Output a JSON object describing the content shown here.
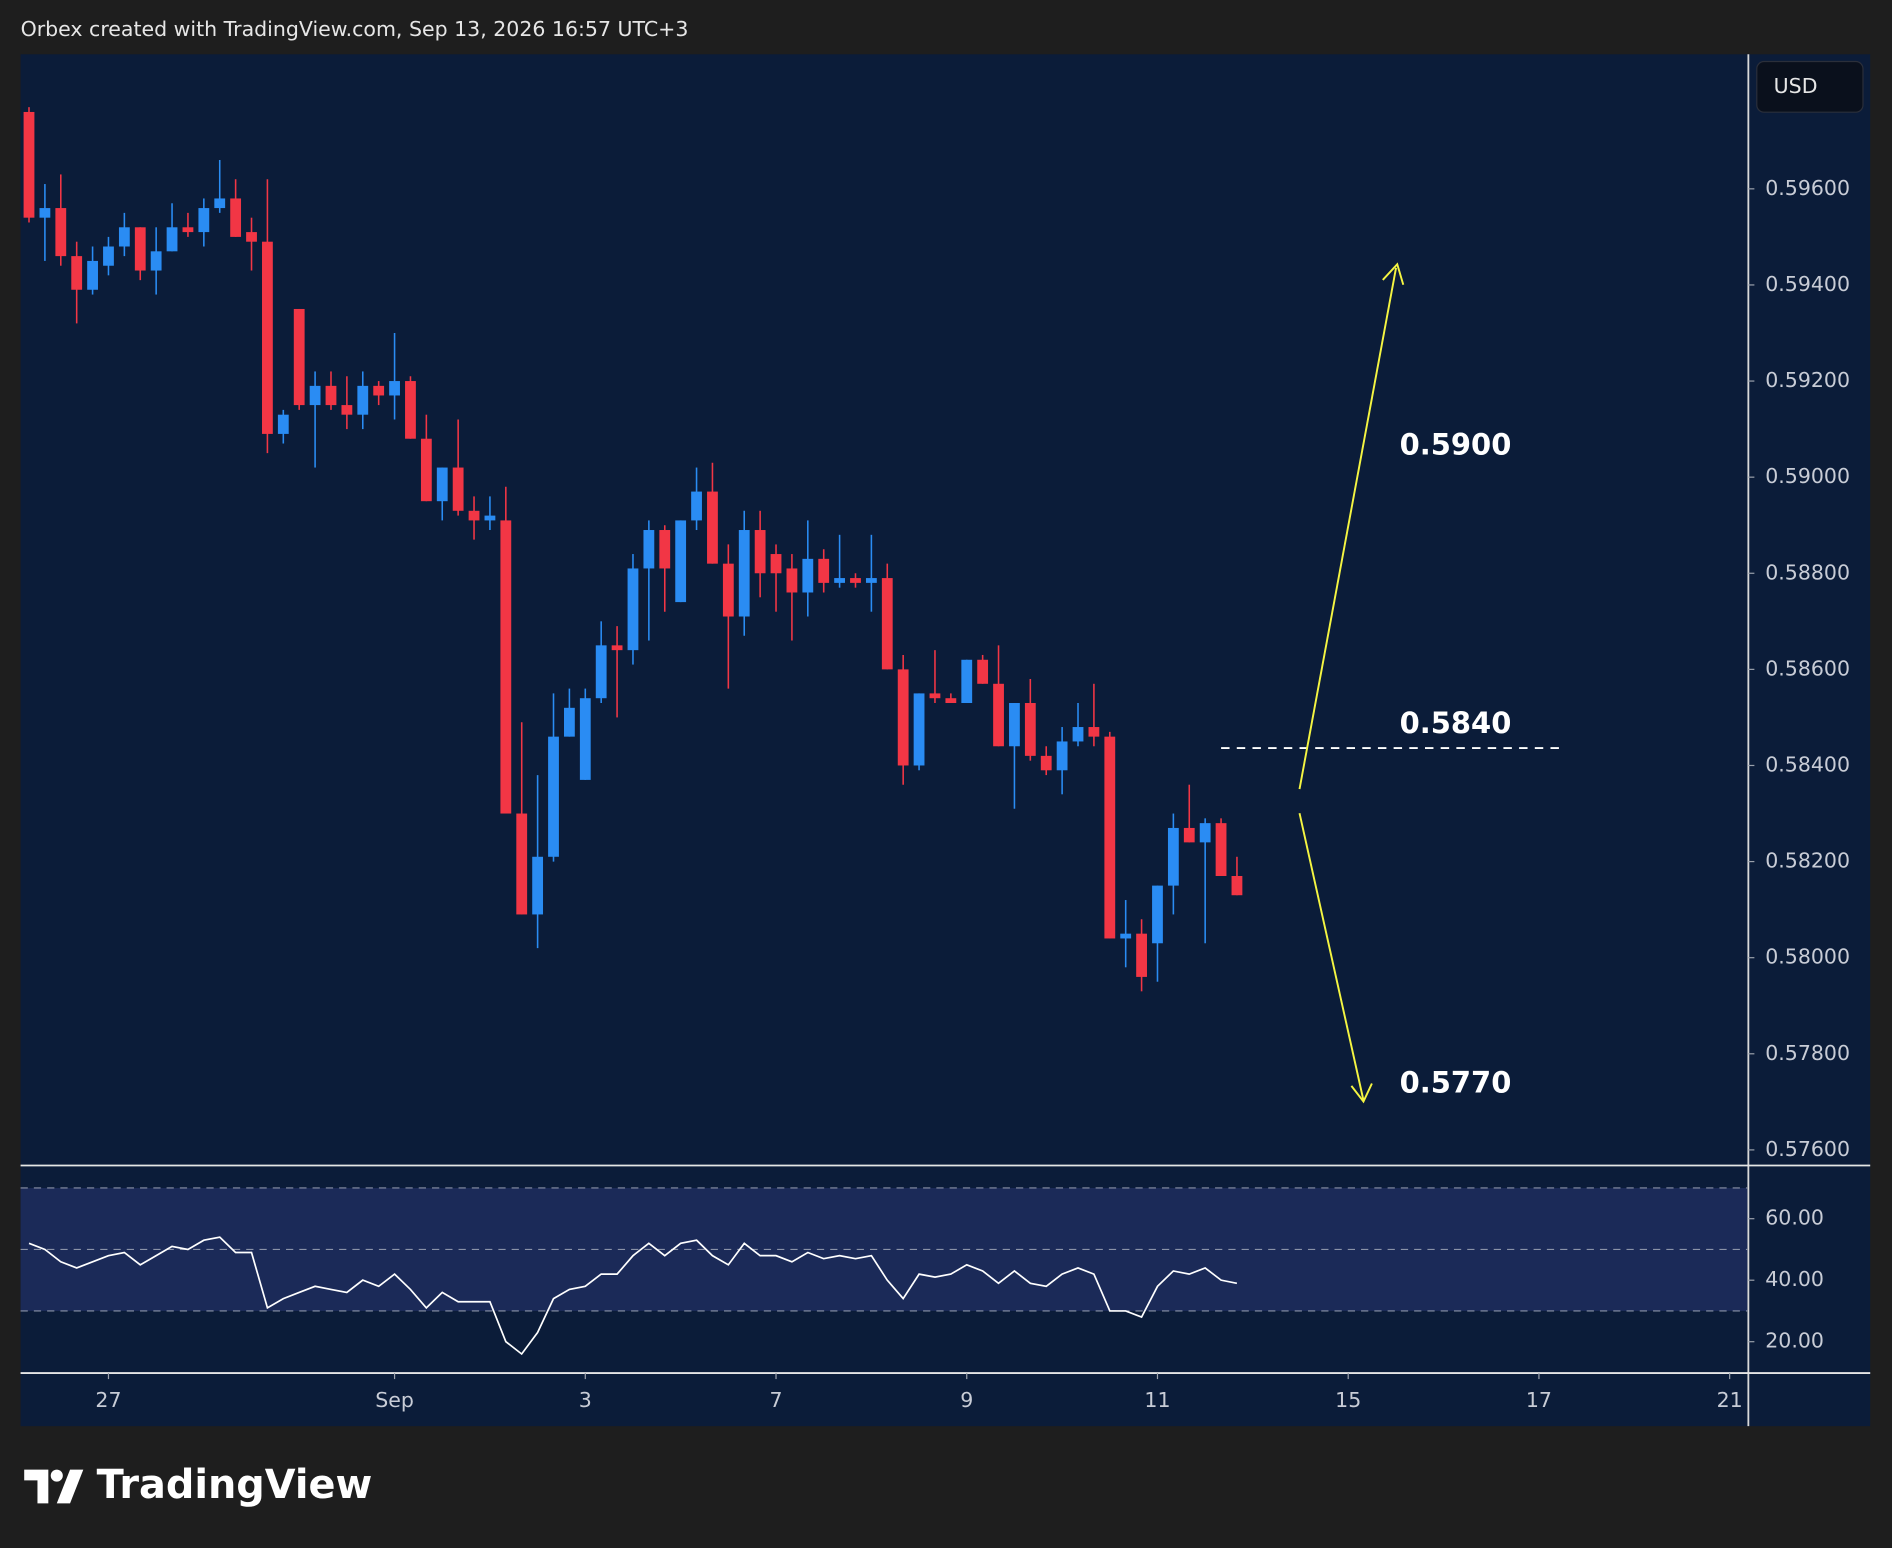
{
  "header": "Orbex created with TradingView.com, Sep 13, 2026 16:57 UTC+3",
  "watermark": "TradingView",
  "chart_data": {
    "type": "candlestick",
    "currency": "USD",
    "up_color": "#2a8cf3",
    "down_color": "#f23645",
    "open": [
      0.5976,
      0.5954,
      0.5956,
      0.5946,
      0.5939,
      0.5944,
      0.5948,
      0.5952,
      0.5943,
      0.5947,
      0.5952,
      0.5951,
      0.5956,
      0.5958,
      0.5951,
      0.5949,
      0.5909,
      0.5935,
      0.5915,
      0.5919,
      0.5915,
      0.5913,
      0.5919,
      0.5917,
      0.592,
      0.5908,
      0.5895,
      0.5902,
      0.5893,
      0.5891,
      0.5891,
      0.583,
      0.5809,
      0.5821,
      0.5846,
      0.5837,
      0.5854,
      0.5865,
      0.5864,
      0.5881,
      0.5889,
      0.5874,
      0.5891,
      0.5897,
      0.5882,
      0.5871,
      0.5889,
      0.5884,
      0.5881,
      0.5876,
      0.5883,
      0.5878,
      0.5879,
      0.5878,
      0.5879,
      0.586,
      0.584,
      0.5855,
      0.5854,
      0.5853,
      0.5862,
      0.5857,
      0.5844,
      0.5853,
      0.5842,
      0.5839,
      0.5845,
      0.5848,
      0.5846,
      0.5804,
      0.5805,
      0.5803,
      0.5815,
      0.5827,
      0.5824,
      0.5828,
      0.5817
    ],
    "high": [
      0.5977,
      0.5961,
      0.5963,
      0.5949,
      0.5948,
      0.595,
      0.5955,
      0.5952,
      0.5952,
      0.5957,
      0.5955,
      0.5958,
      0.5966,
      0.5962,
      0.5954,
      0.5962,
      0.5914,
      0.5935,
      0.5922,
      0.5922,
      0.5921,
      0.5922,
      0.592,
      0.593,
      0.5921,
      0.5913,
      0.5902,
      0.5912,
      0.5896,
      0.5896,
      0.5898,
      0.5849,
      0.5838,
      0.5855,
      0.5856,
      0.5856,
      0.587,
      0.5869,
      0.5884,
      0.5891,
      0.589,
      0.5891,
      0.5902,
      0.5903,
      0.5886,
      0.5893,
      0.5893,
      0.5886,
      0.5884,
      0.5891,
      0.5885,
      0.5888,
      0.588,
      0.5888,
      0.5882,
      0.5863,
      0.5855,
      0.5864,
      0.5855,
      0.5862,
      0.5863,
      0.5865,
      0.5853,
      0.5858,
      0.5844,
      0.5848,
      0.5853,
      0.5857,
      0.5847,
      0.5812,
      0.5808,
      0.5815,
      0.583,
      0.5836,
      0.5829,
      0.5829,
      0.5821
    ],
    "low": [
      0.5953,
      0.5945,
      0.5944,
      0.5932,
      0.5938,
      0.5942,
      0.5946,
      0.5941,
      0.5938,
      0.5947,
      0.595,
      0.5948,
      0.5955,
      0.595,
      0.5943,
      0.5905,
      0.5907,
      0.5914,
      0.5902,
      0.5914,
      0.591,
      0.591,
      0.5915,
      0.5912,
      0.5908,
      0.5895,
      0.5891,
      0.5892,
      0.5887,
      0.5889,
      0.583,
      0.5809,
      0.5802,
      0.582,
      0.5846,
      0.5837,
      0.5853,
      0.585,
      0.5861,
      0.5866,
      0.5872,
      0.5874,
      0.5889,
      0.5882,
      0.5856,
      0.5867,
      0.5875,
      0.5872,
      0.5866,
      0.5871,
      0.5876,
      0.5877,
      0.5877,
      0.5872,
      0.586,
      0.5836,
      0.5839,
      0.5853,
      0.5853,
      0.5853,
      0.5857,
      0.5844,
      0.5831,
      0.5841,
      0.5838,
      0.5834,
      0.5844,
      0.5844,
      0.5804,
      0.5798,
      0.5793,
      0.5795,
      0.5809,
      0.5824,
      0.5803,
      0.5817,
      0.5813
    ],
    "close": [
      0.5954,
      0.5956,
      0.5946,
      0.5939,
      0.5945,
      0.5948,
      0.5952,
      0.5943,
      0.5947,
      0.5952,
      0.5951,
      0.5956,
      0.5958,
      0.595,
      0.5949,
      0.5909,
      0.5913,
      0.5915,
      0.5919,
      0.5915,
      0.5913,
      0.5919,
      0.5917,
      0.592,
      0.5908,
      0.5895,
      0.5902,
      0.5893,
      0.5891,
      0.5892,
      0.583,
      0.5809,
      0.5821,
      0.5846,
      0.5852,
      0.5854,
      0.5865,
      0.5864,
      0.5881,
      0.5889,
      0.5881,
      0.5891,
      0.5897,
      0.5882,
      0.5871,
      0.5889,
      0.588,
      0.588,
      0.5876,
      0.5883,
      0.5878,
      0.5879,
      0.5878,
      0.5879,
      0.586,
      0.584,
      0.5855,
      0.5854,
      0.5853,
      0.5862,
      0.5857,
      0.5844,
      0.5853,
      0.5842,
      0.5839,
      0.5845,
      0.5848,
      0.5846,
      0.5804,
      0.5805,
      0.5796,
      0.5815,
      0.5827,
      0.5824,
      0.5828,
      0.5817,
      0.5813
    ],
    "xlim": [
      -0.53,
      108.1
    ],
    "xticks": [
      {
        "value": 5,
        "label": "27"
      },
      {
        "value": 23,
        "label": "Sep"
      },
      {
        "value": 35,
        "label": "3"
      },
      {
        "value": 47,
        "label": "7"
      },
      {
        "value": 59,
        "label": "9"
      },
      {
        "value": 71,
        "label": "11"
      },
      {
        "value": 83,
        "label": "15"
      },
      {
        "value": 95,
        "label": "17"
      },
      {
        "value": 107,
        "label": "21"
      }
    ],
    "ylim": [
      0.5757,
      0.5988
    ],
    "yticks": [
      {
        "value": 0.596,
        "label": "0.59600"
      },
      {
        "value": 0.594,
        "label": "0.59400"
      },
      {
        "value": 0.592,
        "label": "0.59200"
      },
      {
        "value": 0.59,
        "label": "0.59000"
      },
      {
        "value": 0.588,
        "label": "0.58800"
      },
      {
        "value": 0.586,
        "label": "0.58600"
      },
      {
        "value": 0.584,
        "label": "0.58400"
      },
      {
        "value": 0.582,
        "label": "0.58200"
      },
      {
        "value": 0.58,
        "label": "0.58000"
      },
      {
        "value": 0.578,
        "label": "0.57800"
      },
      {
        "value": 0.576,
        "label": "0.57600"
      }
    ],
    "annotations": [
      {
        "label": "0.5900"
      },
      {
        "label": "0.5840"
      },
      {
        "label": "0.5770"
      }
    ],
    "rsi": {
      "color": "#ffffff",
      "values": [
        52,
        50,
        46,
        44,
        46,
        48,
        49,
        45,
        48,
        51,
        50,
        53,
        54,
        49,
        49,
        31,
        34,
        36,
        38,
        37,
        36,
        40,
        38,
        42,
        37,
        31,
        36,
        33,
        33,
        33,
        20,
        16,
        23,
        34,
        37,
        38,
        42,
        42,
        48,
        52,
        48,
        52,
        53,
        48,
        45,
        52,
        48,
        48,
        46,
        49,
        47,
        48,
        47,
        48,
        40,
        34,
        42,
        41,
        42,
        45,
        43,
        39,
        43,
        39,
        38,
        42,
        44,
        42,
        30,
        30,
        28,
        38,
        43,
        42,
        44,
        40,
        39
      ],
      "ylim": [
        10.2,
        76.9
      ],
      "yticks": [
        {
          "value": 60,
          "label": "60.00"
        },
        {
          "value": 40,
          "label": "40.00"
        },
        {
          "value": 20,
          "label": "20.00"
        }
      ],
      "levels": [
        70,
        50,
        30
      ]
    }
  }
}
